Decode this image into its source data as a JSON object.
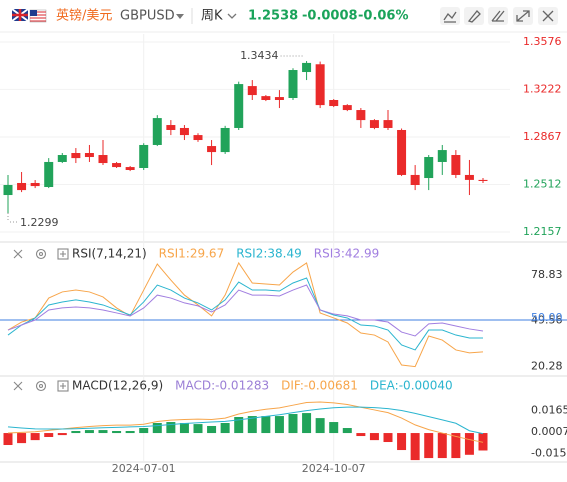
{
  "header": {
    "name_cn": "英镑/美元",
    "symbol": "GBPUSD",
    "period": "周K",
    "price": "1.2538",
    "change": "-0.0008",
    "change_pct": "-0.06%"
  },
  "chart_data": [
    {
      "type": "candlestick",
      "categories": [
        null,
        null,
        null,
        null,
        null,
        null,
        null,
        null,
        null,
        null,
        "2024-07-01",
        null,
        null,
        null,
        null,
        null,
        null,
        null,
        null,
        null,
        null,
        null,
        null,
        null,
        "2024-10-07",
        null,
        null,
        null,
        null,
        null,
        null,
        null,
        null,
        null,
        null,
        null
      ],
      "open": [
        1.2433,
        1.2523,
        1.2523,
        1.2493,
        1.268,
        1.2747,
        1.2747,
        1.2732,
        1.2672,
        1.2642,
        1.2635,
        1.2807,
        1.2956,
        1.2934,
        1.2881,
        1.2799,
        1.2754,
        1.2934,
        1.3247,
        1.3172,
        1.3165,
        1.3158,
        1.3352,
        1.341,
        1.3143,
        1.3105,
        1.3068,
        1.2993,
        1.2993,
        1.2919,
        1.2583,
        1.256,
        1.268,
        1.2732,
        1.2583,
        1.2546
      ],
      "high": [
        1.2583,
        1.2605,
        1.2545,
        1.2709,
        1.2747,
        1.2784,
        1.2807,
        1.2844,
        1.268,
        1.265,
        1.282,
        1.303,
        1.2993,
        1.2956,
        1.2895,
        1.2844,
        1.295,
        1.328,
        1.3292,
        1.318,
        1.3217,
        1.338,
        1.3434,
        1.343,
        1.315,
        1.3112,
        1.3083,
        1.3,
        1.3068,
        1.293,
        1.2657,
        1.2732,
        1.2807,
        1.2769,
        1.2695,
        1.256
      ],
      "low": [
        1.2299,
        1.2455,
        1.2485,
        1.2485,
        1.2672,
        1.2672,
        1.268,
        1.2657,
        1.2635,
        1.2612,
        1.262,
        1.2799,
        1.2881,
        1.2844,
        1.283,
        1.2657,
        1.274,
        1.2919,
        1.3143,
        1.3135,
        1.3083,
        1.3143,
        1.3292,
        1.3083,
        1.309,
        1.306,
        1.2934,
        1.2925,
        1.2919,
        1.2575,
        1.247,
        1.247,
        1.2583,
        1.256,
        1.2433,
        1.2523
      ],
      "close": [
        1.2508,
        1.247,
        1.25,
        1.268,
        1.2732,
        1.2709,
        1.2717,
        1.2672,
        1.2642,
        1.262,
        1.2807,
        1.3008,
        1.2919,
        1.2881,
        1.2844,
        1.2754,
        1.2934,
        1.3262,
        1.318,
        1.3143,
        1.3143,
        1.3367,
        1.342,
        1.3105,
        1.3098,
        1.3068,
        1.2993,
        1.2934,
        1.2934,
        1.2583,
        1.2508,
        1.2717,
        1.2769,
        1.2583,
        1.2546,
        1.2538
      ],
      "up_color": "#21a35a",
      "down_color": "#ea2a2a",
      "ylim": [
        1.2112,
        1.3666
      ],
      "yticks": [
        1.3576,
        1.3222,
        1.2867,
        1.2512,
        1.2157
      ],
      "grid": true
    },
    {
      "type": "line",
      "title": "RSI(7,14,21)",
      "series": [
        {
          "name": "RSI1:29.67",
          "color": "#f7a54a",
          "values": [
            43.6,
            48.7,
            51.3,
            64.0,
            67.9,
            69.1,
            67.9,
            64.7,
            57.7,
            52.6,
            69.1,
            85.7,
            75.5,
            65.9,
            59.6,
            52.6,
            65.9,
            86.4,
            73.6,
            73.0,
            72.3,
            80.6,
            86.4,
            54.5,
            51.3,
            48.1,
            41.7,
            40.4,
            36.0,
            21.3,
            20.28,
            39.8,
            37.2,
            30.9,
            29.0,
            29.67
          ]
        },
        {
          "name": "RSI2:38.49",
          "color": "#2bb5cf",
          "values": [
            40.4,
            46.8,
            51.3,
            59.6,
            61.5,
            62.8,
            61.5,
            59.6,
            56.4,
            53.2,
            61.5,
            72.3,
            69.1,
            64.0,
            60.9,
            56.4,
            62.8,
            74.2,
            69.1,
            69.1,
            68.5,
            73.6,
            76.8,
            56.4,
            53.2,
            51.3,
            46.8,
            46.2,
            43.6,
            34.1,
            30.9,
            43.6,
            43.6,
            40.4,
            38.5,
            38.49
          ]
        },
        {
          "name": "RSI3:42.99",
          "color": "#a17ee0",
          "values": [
            43.6,
            46.8,
            50.0,
            56.4,
            57.7,
            58.3,
            57.7,
            56.4,
            54.5,
            52.6,
            57.7,
            65.9,
            64.0,
            60.9,
            59.0,
            55.1,
            59.6,
            69.1,
            65.9,
            65.9,
            65.3,
            69.1,
            72.3,
            56.4,
            53.8,
            52.6,
            50.0,
            50.0,
            48.7,
            42.3,
            39.8,
            47.5,
            48.1,
            46.2,
            44.3,
            42.99
          ]
        }
      ],
      "ylim": [
        13,
        87
      ],
      "yticks": [
        78.83,
        49.56,
        20.28
      ],
      "reference_line": {
        "value": 50,
        "label": "50.00",
        "color": "#3f7fe0"
      }
    },
    {
      "type": "macd",
      "title": "MACD(12,26,9)",
      "series": [
        {
          "name": "MACD:-0.01283",
          "color": "#9b7fd6",
          "up_color": "#21a35a",
          "down_color": "#ea2a2a",
          "values": [
            -0.0088,
            -0.0074,
            -0.0052,
            -0.0029,
            -0.0015,
            0.0015,
            0.0022,
            0.0022,
            0.0015,
            0.0015,
            0.0037,
            0.0074,
            0.0081,
            0.0074,
            0.0066,
            0.0052,
            0.0074,
            0.0118,
            0.0125,
            0.0125,
            0.0125,
            0.014,
            0.0147,
            0.011,
            0.0081,
            0.0037,
            -0.0022,
            -0.0052,
            -0.0066,
            -0.0125,
            -0.0199,
            -0.0184,
            -0.0184,
            -0.0184,
            -0.016,
            -0.01283
          ]
        },
        {
          "name": "DIF:-0.00681",
          "color": "#f7a54a",
          "values": [
            0.0,
            0.0005,
            0.001,
            0.002,
            0.003,
            0.004,
            0.0048,
            0.0055,
            0.0058,
            0.0058,
            0.0065,
            0.0085,
            0.0095,
            0.01,
            0.0102,
            0.01,
            0.011,
            0.014,
            0.016,
            0.0175,
            0.0185,
            0.0205,
            0.0225,
            0.0228,
            0.0222,
            0.021,
            0.019,
            0.017,
            0.015,
            0.011,
            0.006,
            0.0025,
            0.0,
            -0.0025,
            -0.0048,
            -0.00681
          ]
        },
        {
          "name": "DEA:-0.00040",
          "color": "#2bb5cf",
          "values": [
            0.0045,
            0.0037,
            0.0031,
            0.003,
            0.003,
            0.0032,
            0.0035,
            0.0039,
            0.0042,
            0.0045,
            0.0048,
            0.0055,
            0.0063,
            0.007,
            0.0076,
            0.0081,
            0.0086,
            0.0097,
            0.011,
            0.0123,
            0.0135,
            0.015,
            0.0165,
            0.0177,
            0.0186,
            0.0191,
            0.0191,
            0.0187,
            0.018,
            0.0166,
            0.0145,
            0.0121,
            0.0097,
            0.0072,
            0.0017,
            -0.0004
          ]
        }
      ],
      "ylim": [
        -0.0213,
        0.0302
      ],
      "yticks": [
        0.01657,
        0.00075,
        -0.01507
      ]
    }
  ]
}
